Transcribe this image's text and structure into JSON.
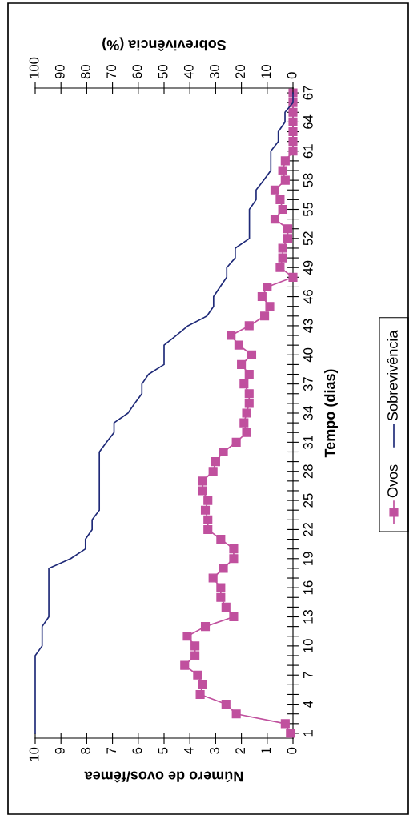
{
  "chart_data": {
    "type": "line",
    "orientation": "horizontal",
    "ylabel": "Tempo (dias)",
    "xlabel": "Número de ovos/fêmea",
    "x2label": "Sobrevivência (%)",
    "x": [
      1,
      2,
      3,
      4,
      5,
      6,
      7,
      8,
      9,
      10,
      11,
      12,
      13,
      14,
      15,
      16,
      17,
      18,
      19,
      20,
      21,
      22,
      23,
      24,
      25,
      26,
      27,
      28,
      29,
      30,
      31,
      32,
      33,
      34,
      35,
      36,
      37,
      38,
      39,
      40,
      41,
      42,
      43,
      44,
      45,
      46,
      47,
      48,
      49,
      50,
      51,
      52,
      53,
      54,
      55,
      56,
      57,
      58,
      59,
      60,
      61,
      62,
      63,
      64,
      65,
      66,
      67
    ],
    "ylim": [
      0.5,
      67.5
    ],
    "yticks": [
      1,
      {
        "value": 2,
        "label": null
      },
      {
        "value": 3,
        "label": null
      },
      4,
      {
        "value": 5,
        "label": null
      },
      {
        "value": 6,
        "label": null
      },
      7,
      {
        "value": 8,
        "label": null
      },
      {
        "value": 9,
        "label": null
      },
      10,
      {
        "value": 11,
        "label": null
      },
      {
        "value": 12,
        "label": null
      },
      13,
      {
        "value": 14,
        "label": null
      },
      {
        "value": 15,
        "label": null
      },
      16,
      {
        "value": 17,
        "label": null
      },
      {
        "value": 18,
        "label": null
      },
      19,
      {
        "value": 20,
        "label": null
      },
      {
        "value": 21,
        "label": null
      },
      22,
      {
        "value": 23,
        "label": null
      },
      {
        "value": 24,
        "label": null
      },
      25,
      {
        "value": 26,
        "label": null
      },
      {
        "value": 27,
        "label": null
      },
      28,
      {
        "value": 29,
        "label": null
      },
      {
        "value": 30,
        "label": null
      },
      31,
      {
        "value": 32,
        "label": null
      },
      {
        "value": 33,
        "label": null
      },
      34,
      {
        "value": 35,
        "label": null
      },
      {
        "value": 36,
        "label": null
      },
      37,
      {
        "value": 38,
        "label": null
      },
      {
        "value": 39,
        "label": null
      },
      40,
      {
        "value": 41,
        "label": null
      },
      {
        "value": 42,
        "label": null
      },
      43,
      {
        "value": 44,
        "label": null
      },
      {
        "value": 45,
        "label": null
      },
      46,
      {
        "value": 47,
        "label": null
      },
      {
        "value": 48,
        "label": null
      },
      49,
      {
        "value": 50,
        "label": null
      },
      {
        "value": 51,
        "label": null
      },
      52,
      {
        "value": 53,
        "label": null
      },
      {
        "value": 54,
        "label": null
      },
      55,
      {
        "value": 56,
        "label": null
      },
      {
        "value": 57,
        "label": null
      },
      58,
      {
        "value": 59,
        "label": null
      },
      {
        "value": 60,
        "label": null
      },
      61,
      {
        "value": 62,
        "label": null
      },
      {
        "value": 63,
        "label": null
      },
      64,
      {
        "value": 65,
        "label": null
      },
      {
        "value": 66,
        "label": null
      },
      67
    ],
    "xlim": [
      10,
      0
    ],
    "xticks": [
      0,
      1,
      2,
      3,
      4,
      5,
      6,
      7,
      8,
      9,
      10
    ],
    "x2lim": [
      100,
      0
    ],
    "x2ticks": [
      0,
      10,
      20,
      30,
      40,
      50,
      60,
      70,
      80,
      90,
      100
    ],
    "series": [
      {
        "name": "Ovos",
        "color": "#c0509e",
        "marker": "square",
        "values": [
          0.1,
          0.3,
          2.2,
          2.6,
          3.6,
          3.5,
          3.7,
          4.2,
          3.8,
          3.8,
          4.1,
          3.4,
          2.3,
          2.6,
          2.8,
          2.8,
          3.1,
          2.7,
          2.3,
          2.3,
          2.8,
          3.3,
          3.3,
          3.4,
          3.3,
          3.5,
          3.5,
          3.1,
          3.0,
          2.7,
          2.2,
          1.8,
          1.9,
          1.8,
          1.7,
          1.7,
          1.9,
          1.7,
          2.0,
          1.6,
          2.1,
          2.4,
          1.7,
          1.1,
          0.9,
          1.2,
          1.0,
          0,
          0.5,
          0.4,
          0.4,
          0.2,
          0.2,
          0.7,
          0.4,
          0.5,
          0.7,
          0.3,
          0.4,
          0.3,
          0,
          0,
          0,
          0,
          0,
          0,
          0
        ]
      },
      {
        "name": "Sobrevivência",
        "color": "#1f2a78",
        "marker": "none",
        "axis": "x2",
        "values": [
          100,
          100,
          100,
          100,
          100,
          100,
          100,
          100,
          100,
          97.3,
          97.3,
          97.3,
          94.7,
          94.7,
          94.7,
          94.7,
          94.7,
          94.7,
          86.2,
          80.5,
          80.5,
          77.9,
          77.9,
          75.1,
          75.1,
          75.1,
          75.1,
          75.1,
          75.1,
          75.1,
          72.3,
          69.4,
          69.4,
          64.0,
          61.4,
          58.6,
          58.6,
          56.0,
          50.0,
          50.0,
          50.0,
          45.3,
          40.7,
          33.4,
          30.8,
          30.8,
          28.3,
          25.7,
          25.7,
          22.4,
          22.4,
          16.9,
          16.9,
          16.9,
          16.9,
          14.3,
          14.3,
          11.4,
          8.6,
          8.6,
          8.6,
          5.7,
          5.7,
          3.1,
          3.1,
          0,
          0
        ]
      }
    ],
    "legend": "right",
    "grid": false
  }
}
